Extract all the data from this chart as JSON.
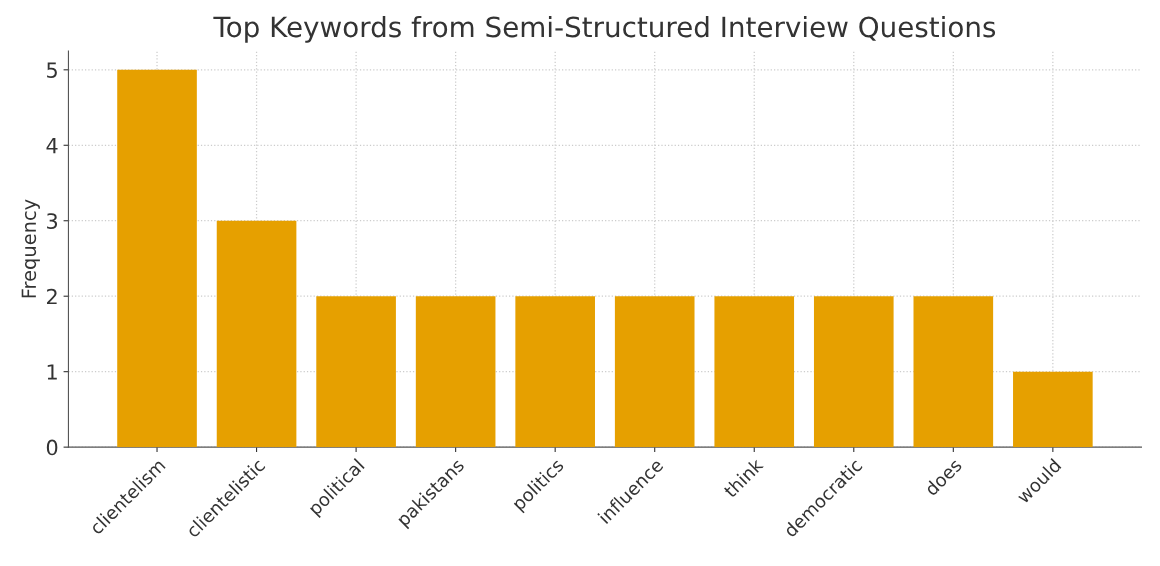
{
  "chart_data": {
    "type": "bar",
    "title": "Top Keywords from Semi-Structured Interview Questions",
    "ylabel": "Frequency",
    "categories": [
      "clientelism",
      "clientelistic",
      "political",
      "pakistans",
      "politics",
      "influence",
      "think",
      "democratic",
      "does",
      "would"
    ],
    "values": [
      5,
      3,
      2,
      2,
      2,
      2,
      2,
      2,
      2,
      1
    ],
    "color": "#e6a000",
    "ylim": [
      0,
      5.25
    ],
    "yticks": [
      0,
      1,
      2,
      3,
      4,
      5
    ],
    "grid": true
  }
}
